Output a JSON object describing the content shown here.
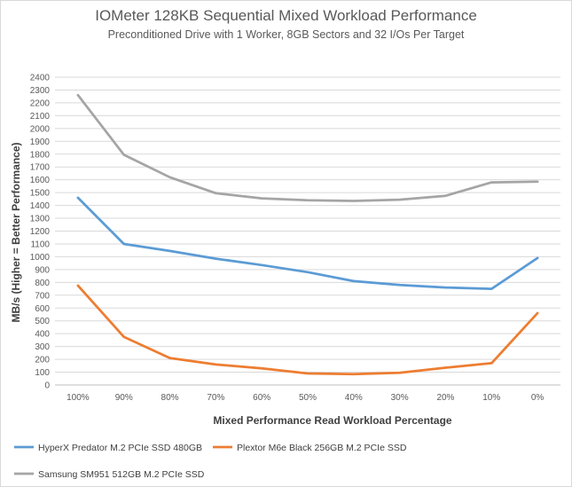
{
  "chart_data": {
    "type": "line",
    "title": "IOMeter 128KB Sequential Mixed Workload Performance",
    "subtitle": "Preconditioned  Drive with 1 Worker, 8GB Sectors and 32 I/Os Per Target",
    "xlabel": "Mixed Performance Read Workload Percentage",
    "ylabel": "MB/s (Higher = Better Performance)",
    "categories": [
      "100%",
      "90%",
      "80%",
      "70%",
      "60%",
      "50%",
      "40%",
      "30%",
      "20%",
      "10%",
      "0%"
    ],
    "ylim": [
      0,
      2400
    ],
    "ytick_step": 100,
    "grid": true,
    "legend_position": "bottom",
    "series": [
      {
        "name": "HyperX Predator M.2 PCIe SSD 480GB",
        "color": "#5b9bd5",
        "values": [
          1460,
          1100,
          1045,
          985,
          935,
          880,
          810,
          780,
          760,
          750,
          990
        ]
      },
      {
        "name": "Plextor M6e Black 256GB M.2 PCIe SSD",
        "color": "#ed7d31",
        "values": [
          775,
          375,
          210,
          160,
          130,
          90,
          85,
          95,
          135,
          170,
          560
        ]
      },
      {
        "name": "Samsung SM951 512GB M.2 PCIe SSD",
        "color": "#a5a5a5",
        "values": [
          2260,
          1795,
          1620,
          1495,
          1455,
          1440,
          1435,
          1445,
          1475,
          1580,
          1585
        ]
      }
    ]
  }
}
